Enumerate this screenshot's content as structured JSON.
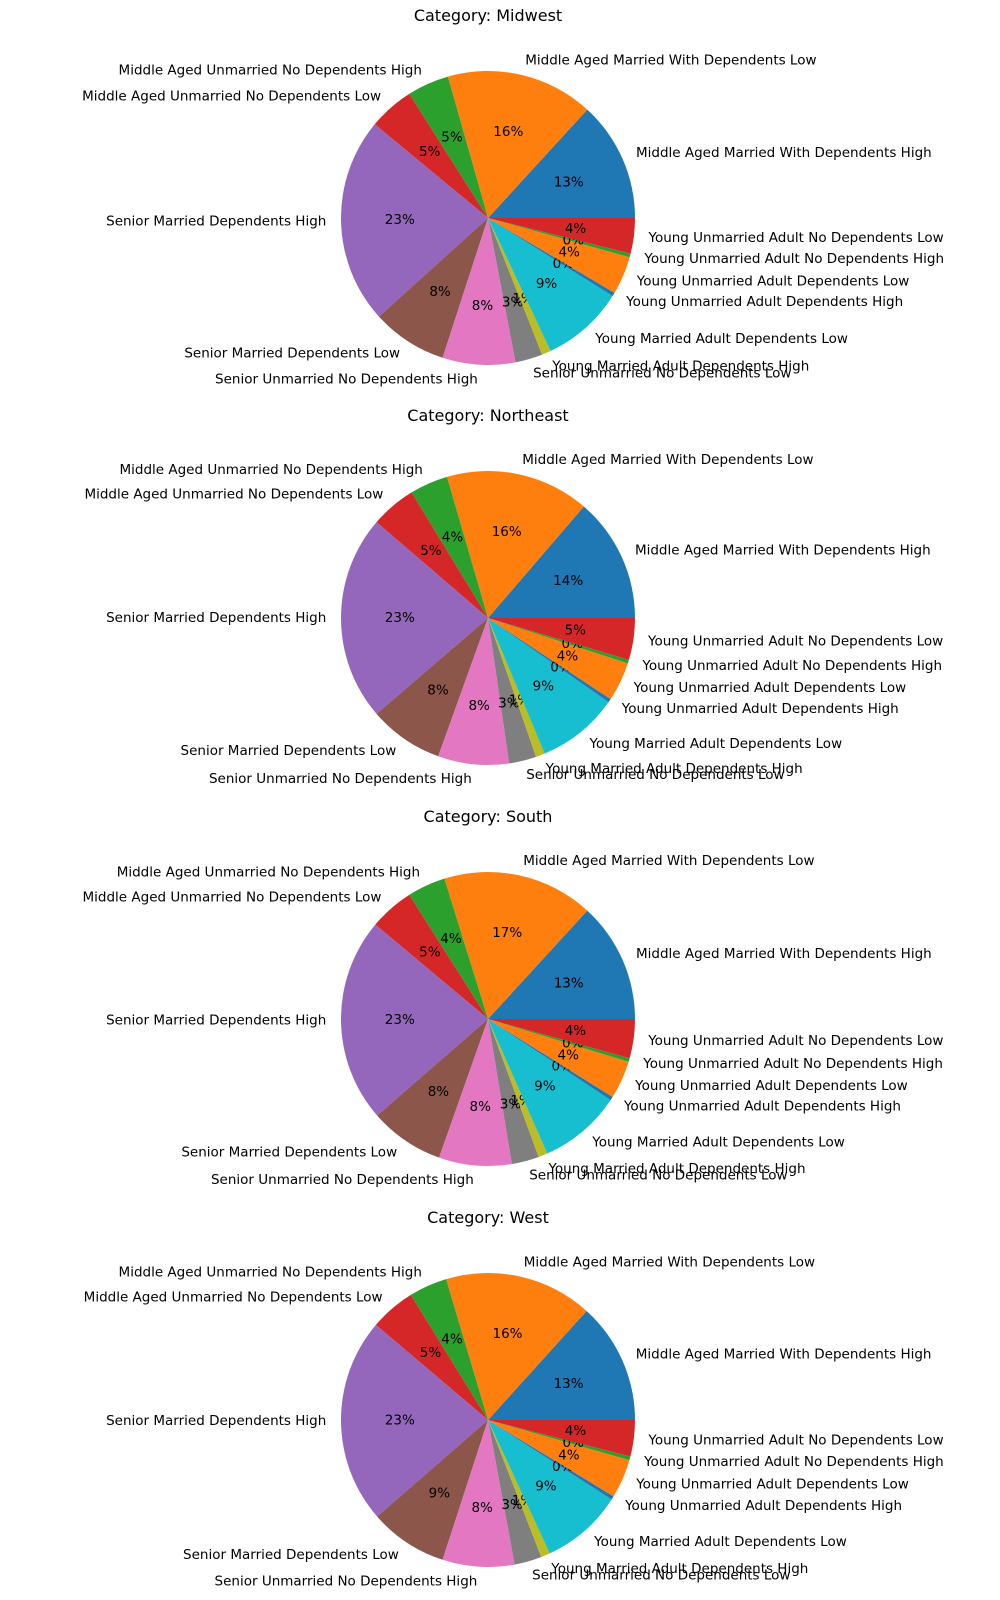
{
  "chart_data": [
    {
      "type": "pie",
      "title": "Category: Midwest",
      "labels": [
        "Middle Aged Married With Dependents High",
        "Middle Aged Married With Dependents Low",
        "Middle Aged Unmarried No Dependents High",
        "Middle Aged Unmarried No Dependents Low",
        "Senior Married Dependents High",
        "Senior Married Dependents Low",
        "Senior Unmarried No Dependents High",
        "Senior Unmarried No Dependents Low",
        "Young Married Adult Dependents High",
        "Young Married Adult Dependents Low",
        "Young Unmarried Adult Dependents High",
        "Young Unmarried Adult Dependents Low",
        "Young Unmarried Adult No Dependents High",
        "Young Unmarried Adult No Dependents Low"
      ],
      "values": [
        13.2,
        16.2,
        4.6,
        5.0,
        22.7,
        8.3,
        8.0,
        3.0,
        1.0,
        9.1,
        0.4,
        4.2,
        0.4,
        3.9
      ],
      "percent_labels": [
        "13%",
        "16%",
        "5%",
        "5%",
        "23%",
        "8%",
        "8%",
        "3%",
        "1%",
        "9%",
        "0%",
        "4%",
        "0%",
        "4%"
      ]
    },
    {
      "type": "pie",
      "title": "Category: Northeast",
      "labels": [
        "Middle Aged Married With Dependents High",
        "Middle Aged Married With Dependents Low",
        "Middle Aged Unmarried No Dependents High",
        "Middle Aged Unmarried No Dependents Low",
        "Senior Married Dependents High",
        "Senior Married Dependents Low",
        "Senior Unmarried No Dependents High",
        "Senior Unmarried No Dependents Low",
        "Young Married Adult Dependents High",
        "Young Married Adult Dependents Low",
        "Young Unmarried Adult Dependents High",
        "Young Unmarried Adult Dependents Low",
        "Young Unmarried Adult No Dependents High",
        "Young Unmarried Adult No Dependents Low"
      ],
      "values": [
        13.7,
        15.8,
        4.2,
        5.0,
        22.6,
        8.2,
        7.8,
        3.0,
        1.0,
        9.0,
        0.4,
        4.3,
        0.4,
        4.6
      ],
      "percent_labels": [
        "14%",
        "16%",
        "4%",
        "5%",
        "23%",
        "8%",
        "8%",
        "3%",
        "1%",
        "9%",
        "0%",
        "4%",
        "0%",
        "5%"
      ]
    },
    {
      "type": "pie",
      "title": "Category: South",
      "labels": [
        "Middle Aged Married With Dependents High",
        "Middle Aged Married With Dependents Low",
        "Middle Aged Unmarried No Dependents High",
        "Middle Aged Unmarried No Dependents Low",
        "Senior Married Dependents High",
        "Senior Married Dependents Low",
        "Senior Unmarried No Dependents High",
        "Senior Unmarried No Dependents Low",
        "Young Married Adult Dependents High",
        "Young Married Adult Dependents Low",
        "Young Unmarried Adult Dependents High",
        "Young Unmarried Adult Dependents Low",
        "Young Unmarried Adult No Dependents High",
        "Young Unmarried Adult No Dependents Low"
      ],
      "values": [
        13.2,
        16.6,
        4.2,
        4.9,
        22.5,
        8.2,
        8.0,
        3.0,
        1.0,
        9.1,
        0.4,
        4.2,
        0.4,
        4.3
      ],
      "percent_labels": [
        "13%",
        "17%",
        "4%",
        "5%",
        "23%",
        "8%",
        "8%",
        "3%",
        "1%",
        "9%",
        "0%",
        "4%",
        "0%",
        "4%"
      ]
    },
    {
      "type": "pie",
      "title": "Category: West",
      "labels": [
        "Middle Aged Married With Dependents High",
        "Middle Aged Married With Dependents Low",
        "Middle Aged Unmarried No Dependents High",
        "Middle Aged Unmarried No Dependents Low",
        "Senior Married Dependents High",
        "Senior Married Dependents Low",
        "Senior Unmarried No Dependents High",
        "Senior Unmarried No Dependents Low",
        "Young Married Adult Dependents High",
        "Young Married Adult Dependents Low",
        "Young Unmarried Adult Dependents High",
        "Young Unmarried Adult Dependents Low",
        "Young Unmarried Adult No Dependents High",
        "Young Unmarried Adult No Dependents Low"
      ],
      "values": [
        13.3,
        16.3,
        4.2,
        5.0,
        22.6,
        8.6,
        7.9,
        3.0,
        1.0,
        9.0,
        0.4,
        4.3,
        0.4,
        4.0
      ],
      "percent_labels": [
        "13%",
        "16%",
        "4%",
        "5%",
        "23%",
        "9%",
        "8%",
        "3%",
        "1%",
        "9%",
        "0%",
        "4%",
        "0%",
        "4%"
      ]
    }
  ],
  "colors": [
    "#1f77b4",
    "#ff7f0e",
    "#2ca02c",
    "#d62728",
    "#9467bd",
    "#8c564b",
    "#e377c2",
    "#7f7f7f",
    "#bcbd22",
    "#17becf",
    "#1f77b4",
    "#ff7f0e",
    "#2ca02c",
    "#d62728"
  ]
}
